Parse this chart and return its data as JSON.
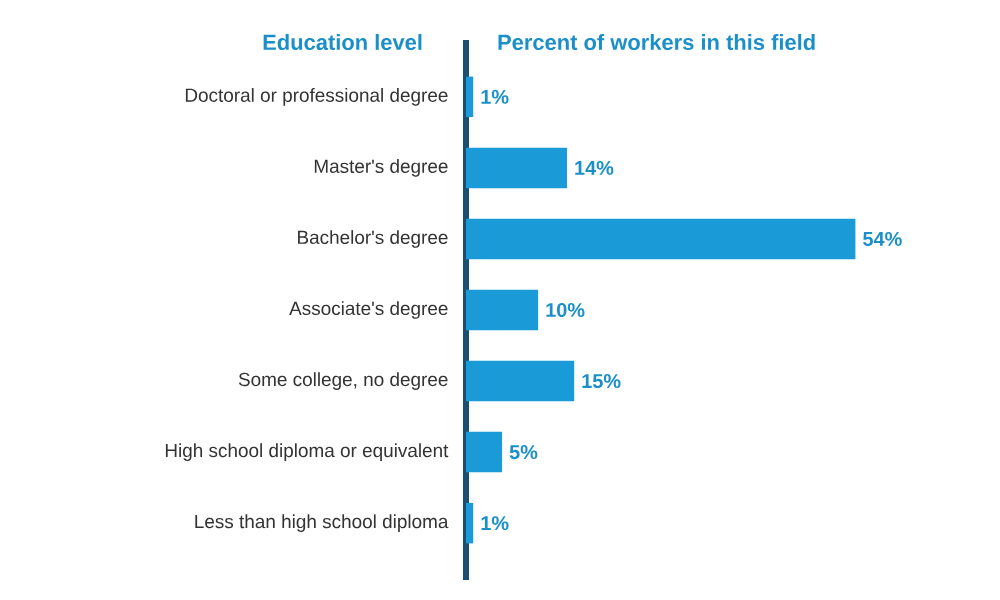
{
  "chart_data": {
    "type": "bar",
    "orientation": "horizontal",
    "ylabel": "Education level",
    "xlabel": "Percent of workers in this field",
    "categories": [
      "Doctoral or professional degree",
      "Master's degree",
      "Bachelor's degree",
      "Associate's degree",
      "Some college, no degree",
      "High school diploma or equivalent",
      "Less than high school diploma"
    ],
    "values": [
      1,
      14,
      54,
      10,
      15,
      5,
      1
    ],
    "value_labels": [
      "1%",
      "14%",
      "54%",
      "10%",
      "15%",
      "5%",
      "1%"
    ],
    "color": "#1a9bd7"
  }
}
